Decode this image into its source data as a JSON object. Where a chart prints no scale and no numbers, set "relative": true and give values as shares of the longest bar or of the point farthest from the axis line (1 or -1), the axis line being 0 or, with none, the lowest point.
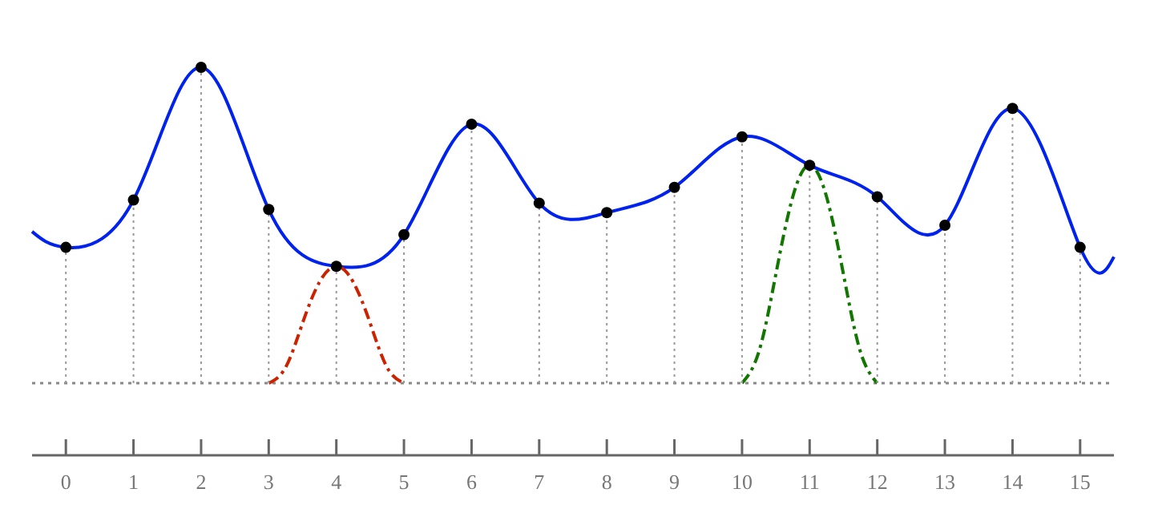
{
  "chart_data": {
    "type": "line",
    "relative": true,
    "xlim": [
      -0.5,
      15.5
    ],
    "xticks": [
      0,
      1,
      2,
      3,
      4,
      5,
      6,
      7,
      8,
      9,
      10,
      11,
      12,
      13,
      14,
      15
    ],
    "tick_labels": "x",
    "grid": "x",
    "series": [
      {
        "color": "#0022ee",
        "x": [
          -0.5,
          0,
          1,
          2,
          3,
          4,
          5,
          6,
          7,
          8,
          9,
          10,
          11,
          12,
          13,
          14,
          15,
          15.5
        ],
        "values": [
          0.48,
          0.43,
          0.58,
          1,
          0.55,
          0.37,
          0.47,
          0.82,
          0.57,
          0.54,
          0.62,
          0.78,
          0.69,
          0.59,
          0.5,
          0.87,
          0.43,
          0.4
        ],
        "line_style": "solid"
      },
      {
        "type": "lollipop",
        "color": "#000000",
        "x": [
          0,
          1,
          2,
          3,
          4,
          5,
          6,
          7,
          8,
          9,
          10,
          11,
          12,
          13,
          14,
          15
        ],
        "values": [
          0.43,
          0.58,
          1,
          0.55,
          0.37,
          0.47,
          0.82,
          0.57,
          0.54,
          0.62,
          0.78,
          0.69,
          0.59,
          0.5,
          0.87,
          0.43
        ],
        "marker": "circle"
      },
      {
        "type": "line",
        "color": "#cc2200",
        "x": [
          3,
          3.25,
          3.5,
          3.75,
          4,
          4.25,
          4.5,
          4.75,
          5
        ],
        "values": [
          0,
          0.05,
          0.19,
          0.32,
          0.37,
          0.32,
          0.19,
          0.05,
          0
        ],
        "line_style": "dashed"
      },
      {
        "type": "line",
        "color": "#117700",
        "x": [
          10,
          10.25,
          10.5,
          10.75,
          11,
          11.25,
          11.5,
          11.75,
          12
        ],
        "values": [
          0,
          0.1,
          0.345,
          0.59,
          0.69,
          0.59,
          0.345,
          0.1,
          0
        ],
        "line_style": "dashed"
      }
    ],
    "ref_lines": [
      {
        "axis": "y",
        "value": 0,
        "color": "#888888",
        "line_style": "dotted"
      }
    ]
  }
}
